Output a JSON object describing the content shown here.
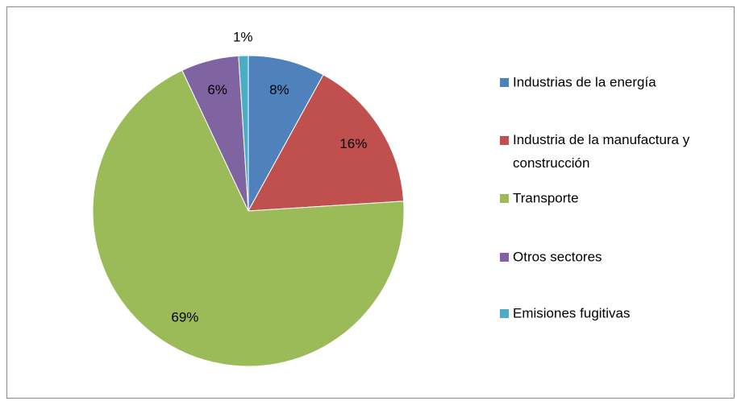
{
  "chart_data": {
    "type": "pie",
    "categories": [
      "Industrias de la energía",
      "Industria de la manufactura y construcción",
      "Transporte",
      "Otros sectores",
      "Emisiones fugitivas"
    ],
    "values": [
      8,
      16,
      69,
      6,
      1
    ],
    "value_labels": [
      "8%",
      "16%",
      "69%",
      "6%",
      "1%"
    ],
    "colors": [
      "#4f81bd",
      "#c0504d",
      "#9bbb59",
      "#8064a2",
      "#4bacc6"
    ],
    "legend": "right"
  }
}
